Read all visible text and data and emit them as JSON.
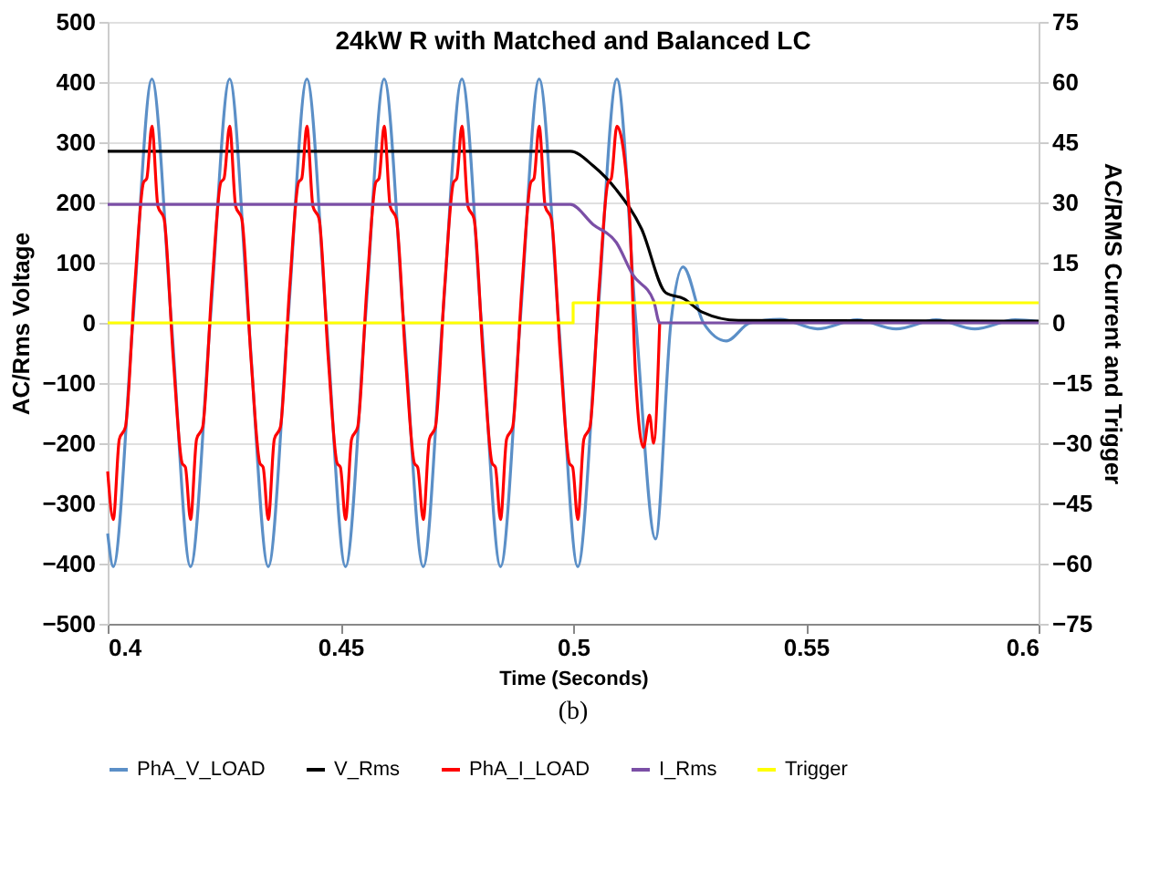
{
  "chart_data": {
    "type": "line",
    "title": "24kW R with Matched and Balanced LC",
    "xlabel": "Time (Seconds)",
    "ylabel": "AC/Rms Voltage",
    "y2label": "AC/RMS Current and Trigger",
    "xlim": [
      0.4,
      0.6
    ],
    "xticks": [
      0.4,
      0.45,
      0.5,
      0.55,
      0.6
    ],
    "ylim": [
      -500,
      500
    ],
    "yticks": [
      -500,
      -400,
      -300,
      -200,
      -100,
      0,
      100,
      200,
      300,
      400,
      500
    ],
    "y2lim": [
      -75,
      75
    ],
    "y2ticks": [
      -75,
      -60,
      -45,
      -30,
      -15,
      0,
      15,
      30,
      45,
      60,
      75
    ],
    "grid": "y",
    "legend": "bottom",
    "annotations": [
      "(b)"
    ],
    "series": [
      {
        "name": "PhA_V_LOAD",
        "color": "#5b8fc7",
        "x": [
          0.4,
          0.4012,
          0.4054,
          0.4095,
          0.4137,
          0.4178,
          0.422,
          0.4262,
          0.4303,
          0.4345,
          0.4387,
          0.4428,
          0.447,
          0.4511,
          0.4553,
          0.4594,
          0.4636,
          0.4678,
          0.4719,
          0.4761,
          0.4803,
          0.4844,
          0.4886,
          0.4927,
          0.4969,
          0.501,
          0.5052,
          0.5094,
          0.5135,
          0.5177,
          0.521,
          0.5236,
          0.528,
          0.5329,
          0.538,
          0.5445,
          0.5525,
          0.561,
          0.5694,
          0.578,
          0.5863,
          0.595,
          0.6
        ],
        "values": [
          -350,
          -405,
          0,
          405,
          0,
          -405,
          0,
          405,
          0,
          -405,
          0,
          405,
          0,
          -405,
          0,
          405,
          0,
          -405,
          0,
          405,
          0,
          -405,
          0,
          405,
          0,
          -405,
          0,
          405,
          0,
          -359,
          0,
          93,
          0,
          -30,
          0,
          6,
          -10,
          5,
          -10,
          5,
          -10,
          5,
          2
        ]
      },
      {
        "name": "V_Rms",
        "color": "#000000",
        "x": [
          0.4,
          0.4994,
          0.5043,
          0.5093,
          0.5147,
          0.5199,
          0.5238,
          0.5277,
          0.5355,
          0.6
        ],
        "values": [
          285,
          285,
          261,
          221,
          156,
          50,
          40,
          18,
          4,
          3
        ]
      },
      {
        "name": "PhA_I_LOAD",
        "color": "#ff0000",
        "axis": "y2",
        "x": [
          0.4,
          0.4012,
          0.4025,
          0.4038,
          0.4058,
          0.4077,
          0.4084,
          0.4095,
          0.4108,
          0.4121,
          0.4141,
          0.416,
          0.4167,
          0.4178,
          0.4191,
          0.4204,
          0.4224,
          0.4243,
          0.425,
          0.4262,
          0.4275,
          0.4288,
          0.4308,
          0.4327,
          0.4334,
          0.4345,
          0.4358,
          0.4371,
          0.4391,
          0.441,
          0.4417,
          0.4428,
          0.4441,
          0.4454,
          0.4474,
          0.4493,
          0.45,
          0.4511,
          0.4524,
          0.4537,
          0.4557,
          0.4576,
          0.4583,
          0.4594,
          0.4607,
          0.462,
          0.464,
          0.4659,
          0.4666,
          0.4678,
          0.4691,
          0.4704,
          0.4724,
          0.4743,
          0.475,
          0.4761,
          0.4774,
          0.4787,
          0.4807,
          0.4826,
          0.4833,
          0.4844,
          0.4857,
          0.487,
          0.489,
          0.4909,
          0.4916,
          0.4927,
          0.494,
          0.4953,
          0.4973,
          0.4992,
          0.4999,
          0.501,
          0.5023,
          0.5036,
          0.5056,
          0.5075,
          0.5082,
          0.5094,
          0.5121,
          0.5134,
          0.5151,
          0.5164,
          0.5173,
          0.5186
        ],
        "values": [
          -37,
          -49,
          -29,
          -26,
          9,
          35,
          36,
          49,
          29,
          26,
          -9,
          -35,
          -36,
          -49,
          -29,
          -26,
          9,
          35,
          36,
          49,
          29,
          26,
          -9,
          -35,
          -36,
          -49,
          -29,
          -26,
          9,
          35,
          36,
          49,
          29,
          26,
          -9,
          -35,
          -36,
          -49,
          -29,
          -26,
          9,
          35,
          36,
          49,
          29,
          26,
          -9,
          -35,
          -36,
          -49,
          -29,
          -26,
          9,
          35,
          36,
          49,
          29,
          26,
          -9,
          -35,
          -36,
          -49,
          -29,
          -26,
          9,
          35,
          36,
          49,
          29,
          26,
          -9,
          -35,
          -36,
          -49,
          -29,
          -26,
          9,
          35,
          36,
          49,
          27,
          -13,
          -31,
          -23,
          -30,
          0
        ]
      },
      {
        "name": "I_Rms",
        "color": "#7b4fa6",
        "axis": "y2",
        "x": [
          0.4,
          0.4994,
          0.5043,
          0.5093,
          0.5128,
          0.5173,
          0.5186,
          0.6
        ],
        "values": [
          29.5,
          29.5,
          24.5,
          20,
          12,
          5.5,
          0,
          0
        ]
      },
      {
        "name": "Trigger",
        "color": "#ffff00",
        "axis": "y2",
        "type": "step",
        "x": [
          0.4,
          0.5,
          0.6
        ],
        "values": [
          0,
          5,
          5
        ]
      }
    ]
  }
}
